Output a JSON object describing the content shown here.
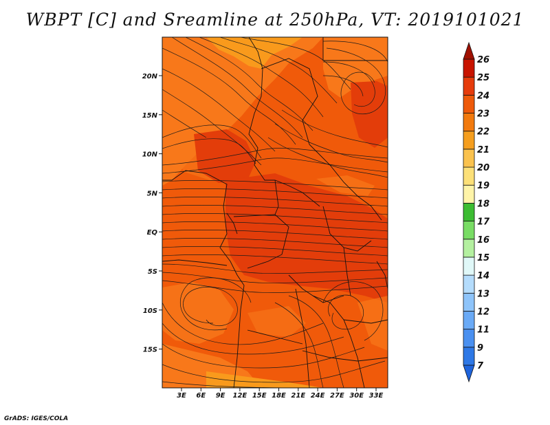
{
  "title": "WBPT [C] and Sreamline at 250hPa, VT: 2019101021",
  "credit": "GrADS: IGES/COLA",
  "map": {
    "lat_labels": [
      "20N",
      "15N",
      "10N",
      "5N",
      "EQ",
      "5S",
      "10S",
      "15S"
    ],
    "lon_labels": [
      "3E",
      "6E",
      "9E",
      "12E",
      "15E",
      "18E",
      "21E",
      "24E",
      "27E",
      "30E",
      "33E"
    ],
    "field_colors": {
      "dominant": "#f05a0a",
      "warm_core": "#e33d0a",
      "cooler": "#f8781a",
      "coolest": "#f99a1c"
    }
  },
  "colorbar": {
    "levels": [
      "7",
      "9",
      "11",
      "12",
      "13",
      "14",
      "15",
      "16",
      "17",
      "18",
      "19",
      "20",
      "21",
      "22",
      "23",
      "24",
      "25",
      "26"
    ],
    "colors": [
      "#1e64dc",
      "#2e78e6",
      "#4a90f0",
      "#6aaaf6",
      "#8ec4fa",
      "#b4dcfc",
      "#e0f8f8",
      "#b4f0a0",
      "#78dc64",
      "#3cbc32",
      "#fff4a8",
      "#fce078",
      "#fac24e",
      "#f59e1e",
      "#f27a0e",
      "#ee5a0a",
      "#e63c0c",
      "#c81400",
      "#a01000"
    ]
  }
}
